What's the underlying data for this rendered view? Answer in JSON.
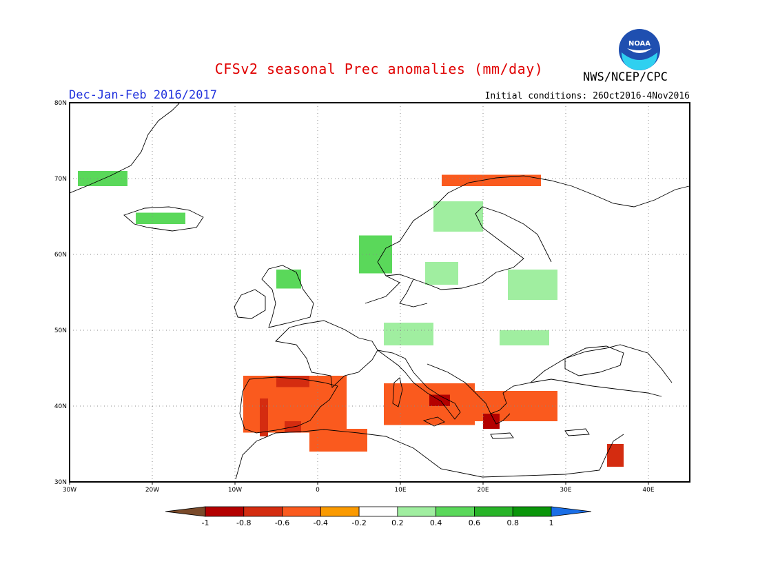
{
  "header": {
    "title": "CFSv2 seasonal Prec anomalies (mm/day)",
    "season": "Dec-Jan-Feb 2016/2017",
    "initial_conditions": "Initial conditions: 26Oct2016-4Nov2016",
    "agency": "NWS/NCEP/CPC",
    "logo_text": "NOAA"
  },
  "map": {
    "lon_range": [
      -30,
      45
    ],
    "lat_range": [
      30,
      80
    ],
    "lon_ticks": [
      "30W",
      "20W",
      "10W",
      "0",
      "10E",
      "20E",
      "30E",
      "40E"
    ],
    "lat_ticks": [
      "30N",
      "40N",
      "50N",
      "60N",
      "70N",
      "80N"
    ],
    "grid": true,
    "coastlines": "thin black lines"
  },
  "colorbar": {
    "labels": [
      "-1",
      "-0.8",
      "-0.6",
      "-0.4",
      "-0.2",
      "0.2",
      "0.4",
      "0.6",
      "0.8",
      "1"
    ],
    "colors": [
      "#7a4a2a",
      "#b40000",
      "#d42c10",
      "#fa5a1e",
      "#fa9a00",
      "#ffffff",
      "#a0eea0",
      "#5ad85a",
      "#28b428",
      "#0a960a",
      "#1a6ee6"
    ]
  },
  "anomaly_regions": [
    {
      "name": "Iberia",
      "value": -0.4
    },
    {
      "name": "Iberia core",
      "value": -0.6
    },
    {
      "name": "North Africa",
      "value": -0.4
    },
    {
      "name": "Italy",
      "value": -0.4
    },
    {
      "name": "Central Italy",
      "value": -0.8
    },
    {
      "name": "Greece & Balkans",
      "value": -0.4
    },
    {
      "name": "Western Greece",
      "value": -0.8
    },
    {
      "name": "Northern Norway",
      "value": -0.4
    },
    {
      "name": "Levant",
      "value": -0.6
    },
    {
      "name": "Western Norway",
      "value": 0.4
    },
    {
      "name": "Scotland",
      "value": 0.4
    },
    {
      "name": "Iceland",
      "value": 0.4
    },
    {
      "name": "Greenland coast",
      "value": 0.4
    },
    {
      "name": "Central Europe",
      "value": 0.2
    },
    {
      "name": "Sweden & Baltic",
      "value": 0.2
    }
  ]
}
